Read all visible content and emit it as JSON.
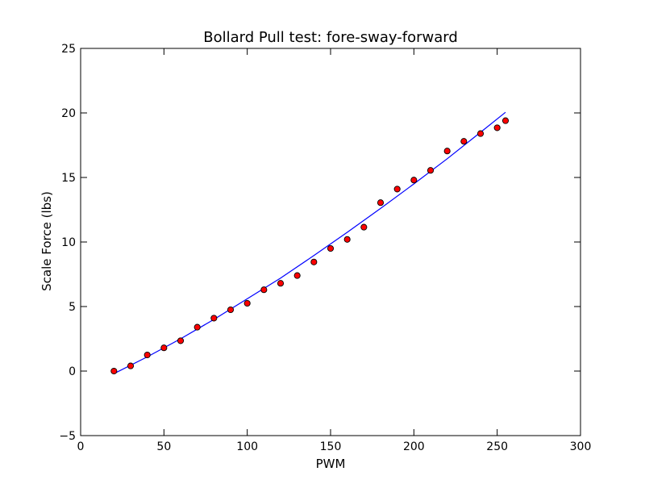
{
  "chart_data": {
    "type": "scatter",
    "title": "Bollard Pull test: fore-sway-forward",
    "xlabel": "PWM",
    "ylabel": "Scale Force (lbs)",
    "xlim": [
      0,
      300
    ],
    "ylim": [
      -5,
      25
    ],
    "xticks": [
      0,
      50,
      100,
      150,
      200,
      250,
      300
    ],
    "yticks": [
      -5,
      0,
      5,
      10,
      15,
      20,
      25
    ],
    "grid": false,
    "series": [
      {
        "kind": "scatter",
        "color": "#ff0000",
        "edge_color": "#000000",
        "x": [
          20,
          30,
          40,
          50,
          60,
          70,
          80,
          90,
          100,
          110,
          120,
          130,
          140,
          150,
          160,
          170,
          180,
          190,
          200,
          210,
          220,
          230,
          240,
          250,
          255
        ],
        "y": [
          0.0,
          0.4,
          1.25,
          1.8,
          2.35,
          3.4,
          4.1,
          4.75,
          5.25,
          6.3,
          6.8,
          7.4,
          8.45,
          9.5,
          10.2,
          11.15,
          13.05,
          14.1,
          14.8,
          15.55,
          17.05,
          17.8,
          18.4,
          18.85,
          19.4
        ]
      },
      {
        "kind": "line",
        "color": "#0000ff",
        "x": [
          20,
          40,
          60,
          80,
          100,
          120,
          140,
          160,
          180,
          200,
          220,
          240,
          255
        ],
        "y": [
          -0.2,
          1.1,
          2.5,
          4.0,
          5.6,
          7.2,
          8.95,
          10.75,
          12.6,
          14.5,
          16.45,
          18.5,
          20.05
        ]
      }
    ]
  }
}
